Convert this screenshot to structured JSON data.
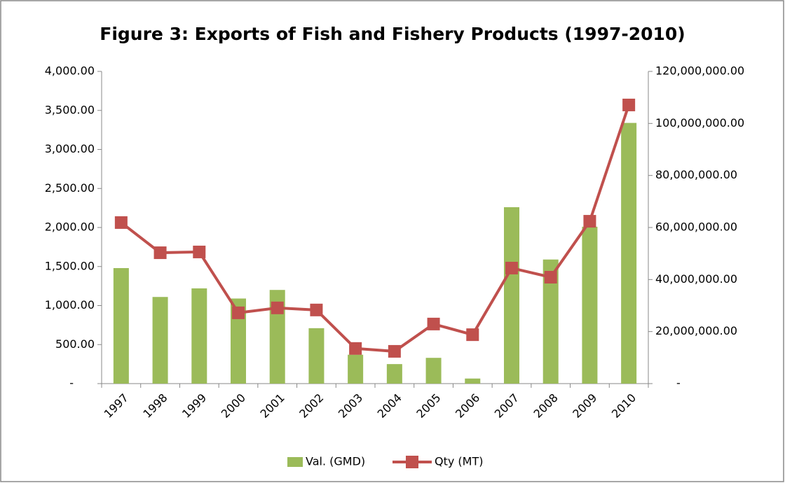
{
  "chart_data": {
    "type": "bar-line",
    "title": "Figure 3: Exports of Fish and Fishery Products (1997-2010)",
    "categories": [
      "1997",
      "1998",
      "1999",
      "2000",
      "2001",
      "2002",
      "2003",
      "2004",
      "2005",
      "2006",
      "2007",
      "2008",
      "2009",
      "2010"
    ],
    "series": [
      {
        "name": "Val. (GMD)",
        "color": "#9bbb59",
        "type": "bar",
        "axis": "y",
        "values": [
          1480,
          1110,
          1220,
          1090,
          1200,
          710,
          370,
          250,
          330,
          65,
          2260,
          1590,
          2010,
          3340
        ]
      },
      {
        "name": "Qty (MT)",
        "color": "#c0504d",
        "type": "line",
        "axis": "y2",
        "values": [
          61900000,
          50300000,
          50600000,
          27200000,
          29100000,
          28300000,
          13500000,
          12400000,
          22900000,
          18800000,
          44400000,
          40900000,
          62400000,
          107100000
        ]
      }
    ],
    "ylim": [
      0,
      4000
    ],
    "yticks": [
      {
        "value": 0,
        "label": "-"
      },
      {
        "value": 500,
        "label": "500.00"
      },
      {
        "value": 1000,
        "label": "1,000.00"
      },
      {
        "value": 1500,
        "label": "1,500.00"
      },
      {
        "value": 2000,
        "label": "2,000.00"
      },
      {
        "value": 2500,
        "label": "2,500.00"
      },
      {
        "value": 3000,
        "label": "3,000.00"
      },
      {
        "value": 3500,
        "label": "3,500.00"
      },
      {
        "value": 4000,
        "label": "4,000.00"
      }
    ],
    "y2lim": [
      0,
      120000000
    ],
    "y2ticks": [
      {
        "value": 0,
        "label": "-"
      },
      {
        "value": 20000000,
        "label": "20,000,000.00"
      },
      {
        "value": 40000000,
        "label": "40,000,000.00"
      },
      {
        "value": 60000000,
        "label": "60,000,000.00"
      },
      {
        "value": 80000000,
        "label": "80,000,000.00"
      },
      {
        "value": 100000000,
        "label": "100,000,000.00"
      },
      {
        "value": 120000000,
        "label": "120,000,000.00"
      }
    ],
    "legend": "bottom"
  }
}
